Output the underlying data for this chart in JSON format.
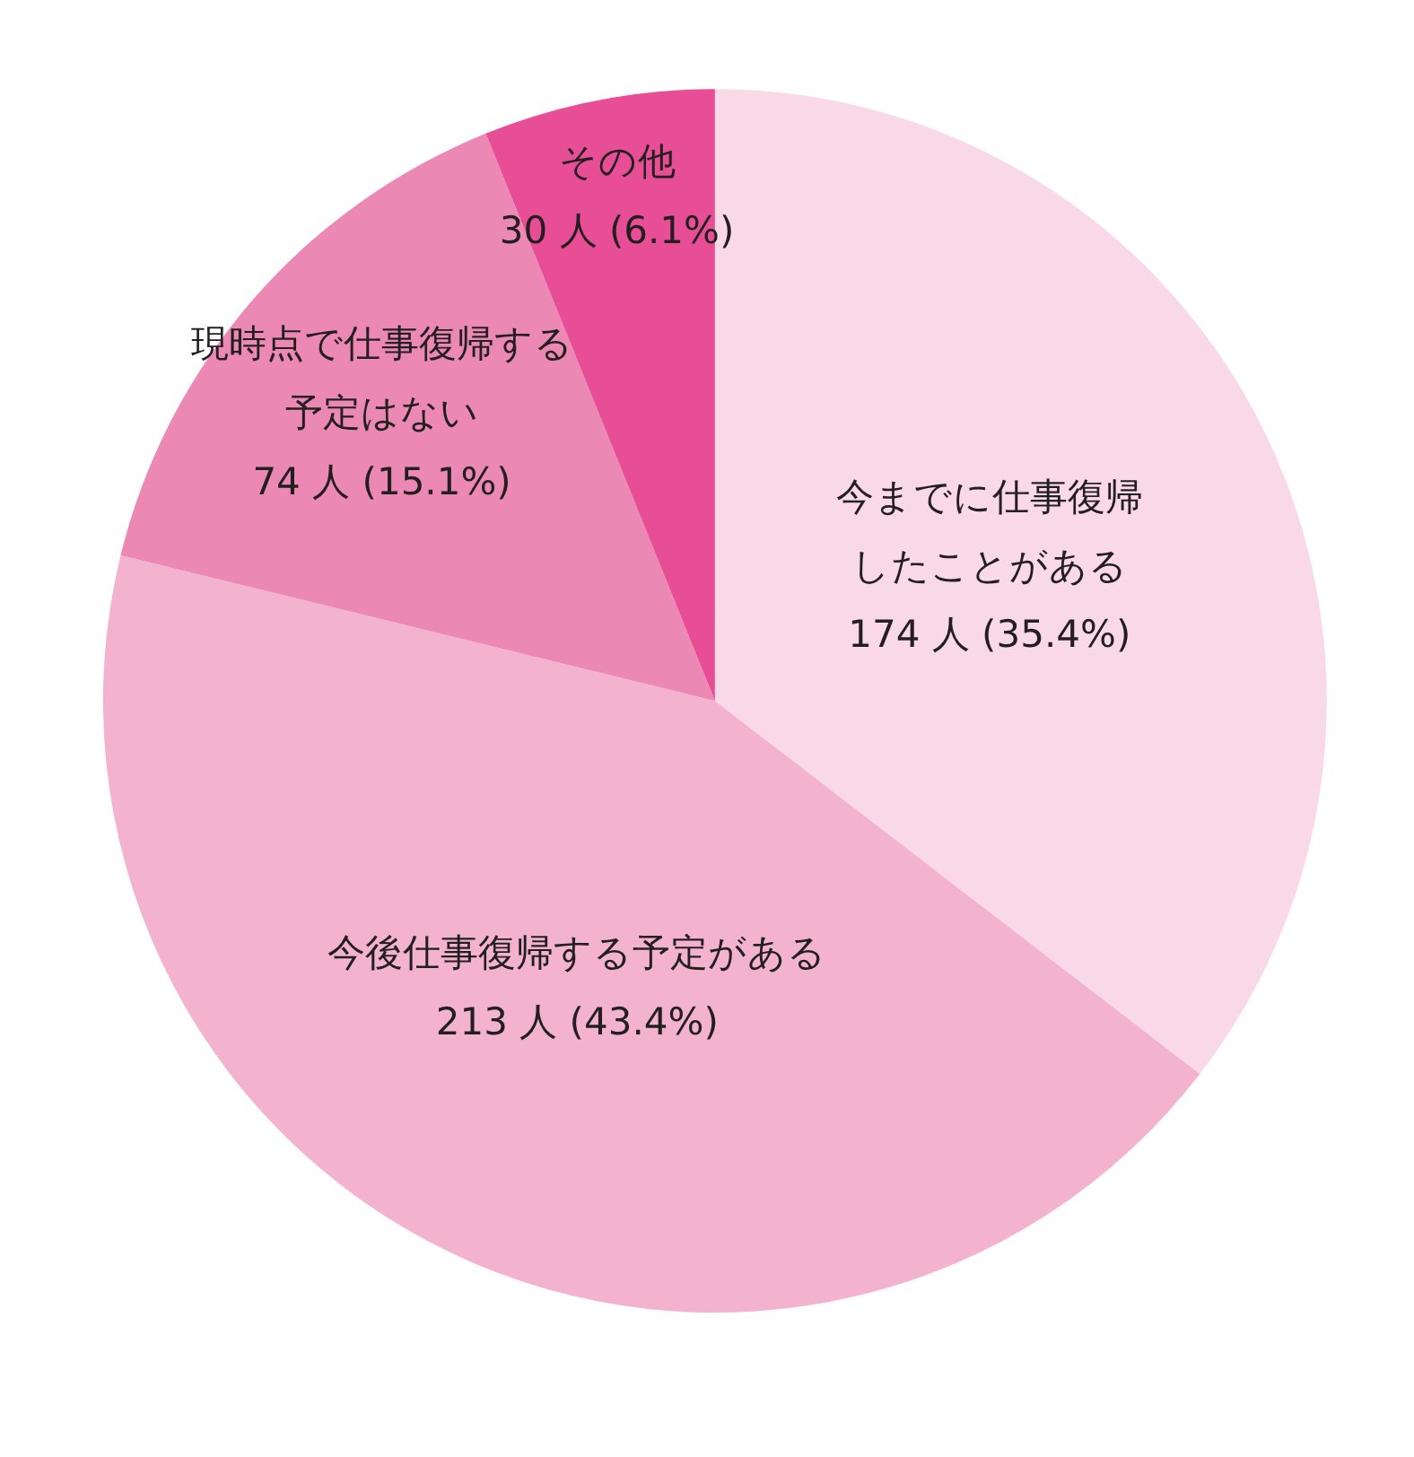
{
  "chart_data": {
    "type": "pie",
    "categories": [
      "今までに仕事復帰したことがある",
      "今後仕事復帰する予定がある",
      "現時点で仕事復帰する予定はない",
      "その他"
    ],
    "values": [
      174,
      213,
      74,
      30
    ],
    "value_labels": [
      "174 人 (35.4%)",
      "213 人 (43.4%)",
      "74 人 (15.1%)",
      "30 人 (6.1%)"
    ],
    "colors": [
      "#f9d9e7",
      "#f3b3cf",
      "#ec88b4",
      "#e84e96"
    ]
  }
}
